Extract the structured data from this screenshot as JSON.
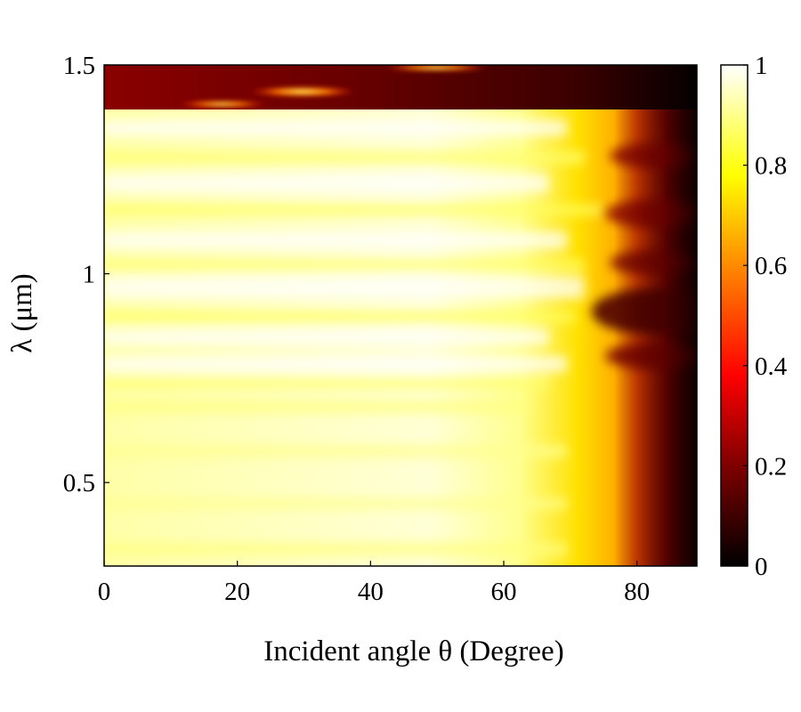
{
  "chart_data": {
    "type": "heatmap",
    "title": "",
    "xlabel": "Incident angle θ (Degree)",
    "ylabel": "λ (μm)",
    "xlim": [
      0,
      89
    ],
    "ylim": [
      0.3,
      1.5
    ],
    "x_ticks": [
      0,
      20,
      40,
      60,
      80
    ],
    "x_tick_labels": [
      "0",
      "20",
      "40",
      "60",
      "80"
    ],
    "y_ticks": [
      0.5,
      1,
      1.5
    ],
    "y_tick_labels": [
      "0.5",
      "1",
      "1.5"
    ],
    "colorbar": {
      "range": [
        0,
        1
      ],
      "ticks": [
        0,
        0.2,
        0.4,
        0.6,
        0.8,
        1
      ],
      "tick_labels": [
        "0",
        "0.2",
        "0.4",
        "0.6",
        "0.8",
        "1"
      ],
      "colormap": "hot",
      "colors": [
        "#000000",
        "#7f0000",
        "#ff0000",
        "#ff7f00",
        "#ffff00",
        "#ffffff"
      ]
    },
    "regions": [
      {
        "x": [
          0,
          89
        ],
        "y": [
          1.39,
          1.5
        ],
        "value": 0.15
      },
      {
        "x": [
          0,
          65
        ],
        "y": [
          0.3,
          1.38
        ],
        "value": 0.92
      },
      {
        "x": [
          75,
          86
        ],
        "y": [
          0.3,
          0.8
        ],
        "value": 0.55
      },
      {
        "x": [
          86,
          89
        ],
        "y": [
          0.3,
          1.38
        ],
        "value": 0.1
      }
    ],
    "hotspots": [
      {
        "x": 30,
        "y": 1.43,
        "value": 0.7
      },
      {
        "x": 18,
        "y": 1.4,
        "value": 0.55
      },
      {
        "x": 50,
        "y": 1.49,
        "value": 0.8
      }
    ]
  }
}
